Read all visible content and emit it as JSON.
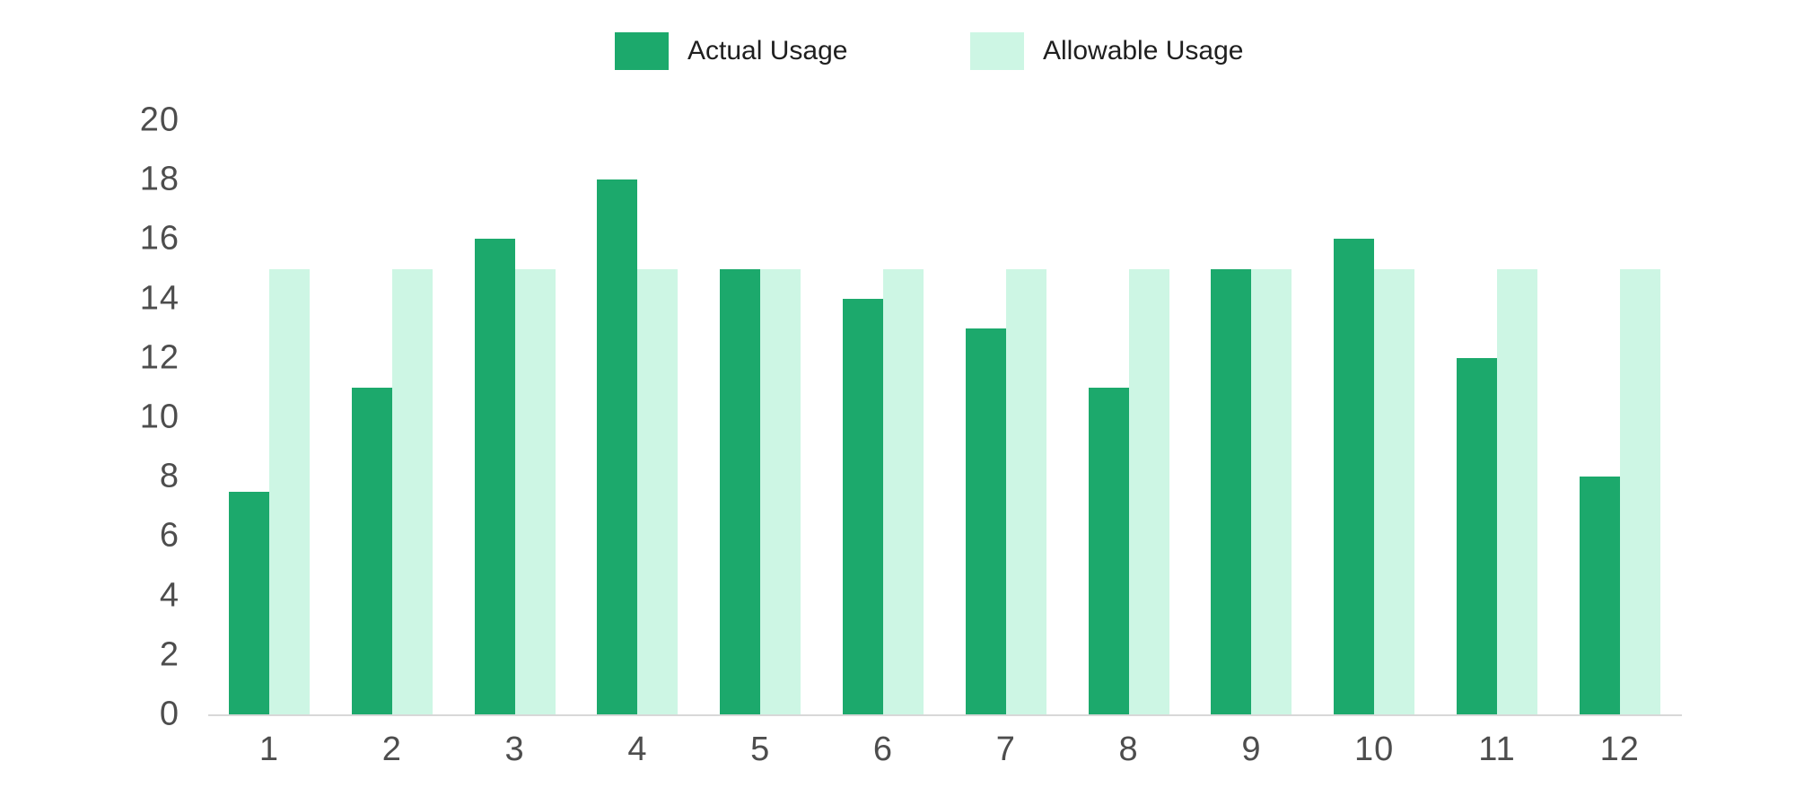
{
  "chart_data": {
    "type": "bar",
    "title": "",
    "categories": [
      "1",
      "2",
      "3",
      "4",
      "5",
      "6",
      "7",
      "8",
      "9",
      "10",
      "11",
      "12"
    ],
    "series": [
      {
        "name": "Actual Usage",
        "color": "#1CA96C",
        "values": [
          7.5,
          11,
          16,
          18,
          15,
          14,
          13,
          11,
          15,
          16,
          12,
          8
        ]
      },
      {
        "name": "Allowable Usage",
        "color": "#CDF6E4",
        "values": [
          15,
          15,
          15,
          15,
          15,
          15,
          15,
          15,
          15,
          15,
          15,
          15
        ]
      }
    ],
    "xlabel": "",
    "ylabel": "",
    "ylim": [
      0,
      20
    ],
    "yticks": [
      0,
      2,
      4,
      6,
      8,
      10,
      12,
      14,
      16,
      18,
      20
    ],
    "grid": false,
    "legend_position": "top",
    "axis_line_color": "#D8D8D8",
    "tick_label_color": "#4D4D4D",
    "legend_text_color": "#1F1F1F",
    "background_color": "#FFFFFF"
  }
}
